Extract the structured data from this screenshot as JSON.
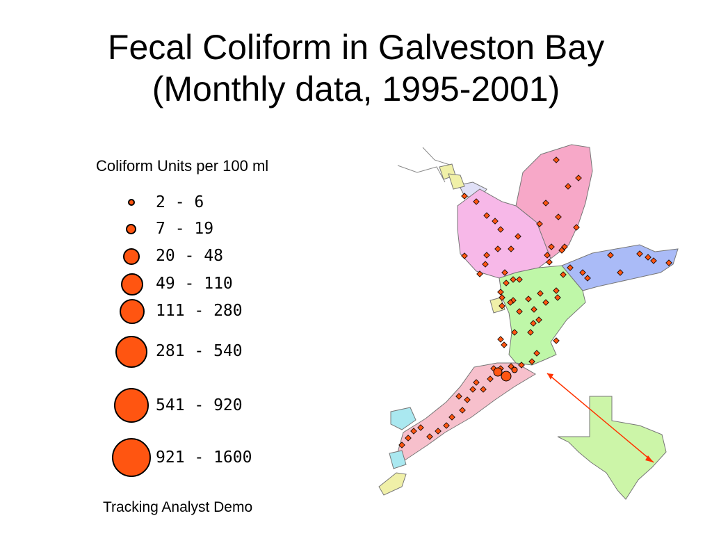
{
  "title": {
    "line1": "Fecal Coliform in Galveston Bay",
    "line2": "(Monthly data, 1995-2001)"
  },
  "legend": {
    "title": "Coliform Units per 100 ml",
    "marker_color": "#ff5511",
    "classes": [
      {
        "label": "2 - 6"
      },
      {
        "label": "7 - 19"
      },
      {
        "label": "20 - 48"
      },
      {
        "label": "49 - 110"
      },
      {
        "label": "111 - 280"
      },
      {
        "label": "281 - 540"
      },
      {
        "label": "541 - 920"
      },
      {
        "label": "921 - 1600"
      }
    ]
  },
  "footer": "Tracking Analyst Demo",
  "map": {
    "zone_colors": {
      "trinity_bay": "#f7a8c8",
      "upper_bay": "#f7b8e8",
      "east_bay": "#aabbf7",
      "lower_bay": "#bff7a8",
      "west_bay": "#f7c0cc",
      "small_bays": [
        "#aae8f0",
        "#c8f0a8",
        "#e0e0f7",
        "#f0f0a8"
      ],
      "texas": "#ccf5a8"
    },
    "locator_arrow_color": "#ff3300"
  }
}
